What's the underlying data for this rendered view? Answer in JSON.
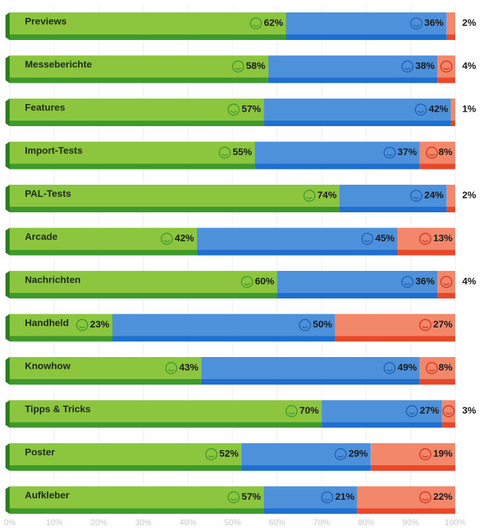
{
  "chart_data": {
    "type": "stacked_barh",
    "categories": [
      "Previews",
      "Messeberichte",
      "Features",
      "Import-Tests",
      "PAL-Tests",
      "Arcade",
      "Nachrichten",
      "Handheld",
      "Knowhow",
      "Tipps & Tricks",
      "Poster",
      "Aufkleber"
    ],
    "series": [
      {
        "color": "#8cc63e",
        "values": [
          62,
          58,
          57,
          55,
          74,
          42,
          60,
          23,
          43,
          70,
          52,
          57
        ],
        "value_labels": [
          "62%",
          "58%",
          "57%",
          "55%",
          "74%",
          "42%",
          "60%",
          "23%",
          "43%",
          "70%",
          "52%",
          "57%"
        ]
      },
      {
        "color": "#4d91da",
        "values": [
          36,
          38,
          42,
          37,
          24,
          45,
          36,
          50,
          49,
          27,
          29,
          21
        ],
        "value_labels": [
          "36%",
          "38%",
          "42%",
          "37%",
          "24%",
          "45%",
          "36%",
          "50%",
          "49%",
          "27%",
          "29%",
          "21%"
        ]
      },
      {
        "color": "#f3876a",
        "values": [
          2,
          4,
          1,
          8,
          2,
          13,
          4,
          27,
          8,
          3,
          19,
          22
        ],
        "value_labels": [
          "2%",
          "4%",
          "1%",
          "8%",
          "2%",
          "13%",
          "4%",
          "27%",
          "8%",
          "3%",
          "19%",
          "22%"
        ]
      }
    ],
    "xlim": [
      0,
      100
    ],
    "xticks": [
      {
        "value": 0,
        "label": "0%"
      },
      {
        "value": 10,
        "label": "10%"
      },
      {
        "value": 20,
        "label": "20%"
      },
      {
        "value": 30,
        "label": "30%"
      },
      {
        "value": 40,
        "label": "40%"
      },
      {
        "value": 50,
        "label": "50%"
      },
      {
        "value": 60,
        "label": "60%"
      },
      {
        "value": 70,
        "label": "70%"
      },
      {
        "value": 80,
        "label": "80%"
      },
      {
        "value": 90,
        "label": "90%"
      },
      {
        "value": 100,
        "label": "100%"
      }
    ],
    "grid": true
  }
}
